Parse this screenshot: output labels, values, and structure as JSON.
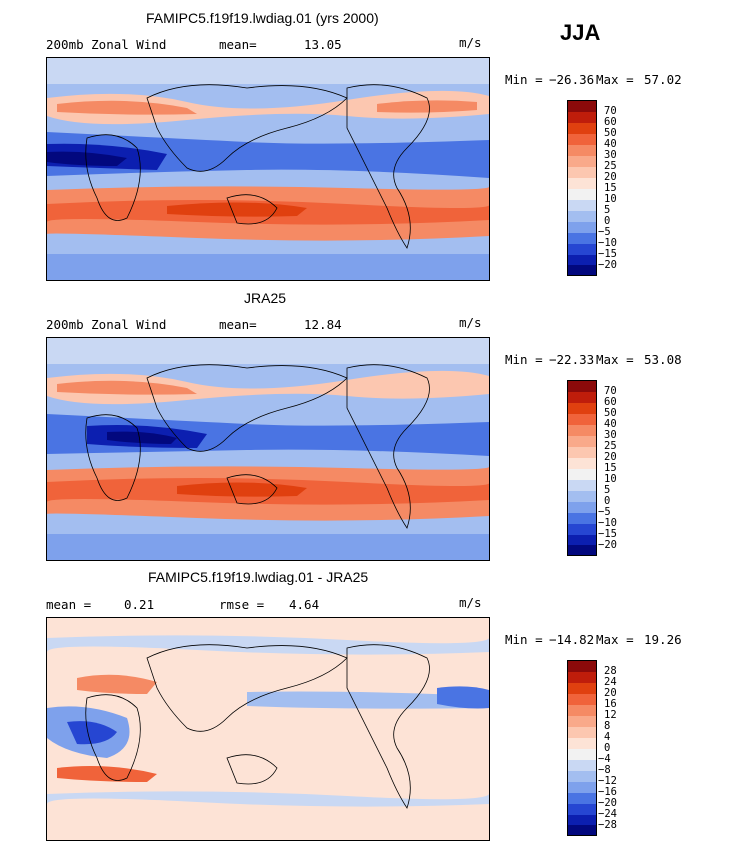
{
  "season": "JJA",
  "chart_data": [
    {
      "type": "heatmap",
      "title": "FAMIPC5.f19f19.lwdiag.01 (yrs 2000)",
      "field_label": "200mb Zonal Wind",
      "stat1_label": "mean=",
      "stat1_value": "13.05",
      "units": "m/s",
      "min_label": "Min =",
      "min_value": "−26.36",
      "max_label": "Max =",
      "max_value": "57.02",
      "colorbar_levels": [
        "70",
        "60",
        "50",
        "40",
        "30",
        "25",
        "20",
        "15",
        "10",
        "5",
        "0",
        "−5",
        "−10",
        "−15",
        "−20"
      ],
      "colorbar_colors": [
        "#8b0a0a",
        "#bf1d0b",
        "#e0400f",
        "#f0633a",
        "#f58a64",
        "#f9a98a",
        "#fcc7b0",
        "#fde3d6",
        "#f2f2f2",
        "#c9d8f3",
        "#a3bef0",
        "#7ea1ec",
        "#4a74e3",
        "#2646d2",
        "#0c1fb0",
        "#02087e"
      ]
    },
    {
      "type": "heatmap",
      "title": "JRA25",
      "field_label": "200mb Zonal Wind",
      "stat1_label": "mean=",
      "stat1_value": "12.84",
      "units": "m/s",
      "min_label": "Min =",
      "min_value": "−22.33",
      "max_label": "Max =",
      "max_value": "53.08",
      "colorbar_levels": [
        "70",
        "60",
        "50",
        "40",
        "30",
        "25",
        "20",
        "15",
        "10",
        "5",
        "0",
        "−5",
        "−10",
        "−15",
        "−20"
      ],
      "colorbar_colors": [
        "#8b0a0a",
        "#bf1d0b",
        "#e0400f",
        "#f0633a",
        "#f58a64",
        "#f9a98a",
        "#fcc7b0",
        "#fde3d6",
        "#f2f2f2",
        "#c9d8f3",
        "#a3bef0",
        "#7ea1ec",
        "#4a74e3",
        "#2646d2",
        "#0c1fb0",
        "#02087e"
      ]
    },
    {
      "type": "heatmap",
      "title": "FAMIPC5.f19f19.lwdiag.01 - JRA25",
      "stat1_label": "mean =",
      "stat1_value": "0.21",
      "stat2_label": "rmse =",
      "stat2_value": "4.64",
      "units": "m/s",
      "min_label": "Min =",
      "min_value": "−14.82",
      "max_label": "Max =",
      "max_value": "19.26",
      "colorbar_levels": [
        "28",
        "24",
        "20",
        "16",
        "12",
        "8",
        "4",
        "0",
        "−4",
        "−8",
        "−12",
        "−16",
        "−20",
        "−24",
        "−28"
      ],
      "colorbar_colors": [
        "#8b0a0a",
        "#bf1d0b",
        "#e0400f",
        "#f0633a",
        "#f58a64",
        "#f9a98a",
        "#fcc7b0",
        "#fde3d6",
        "#f2f2f2",
        "#c9d8f3",
        "#a3bef0",
        "#7ea1ec",
        "#4a74e3",
        "#2646d2",
        "#0c1fb0",
        "#02087e"
      ]
    }
  ]
}
